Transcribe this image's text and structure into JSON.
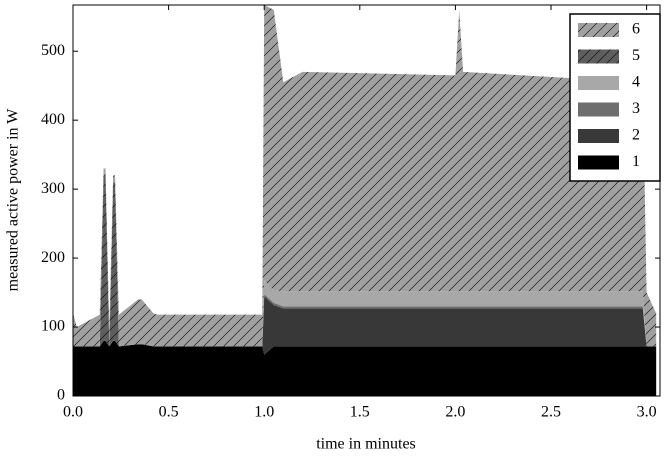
{
  "chart_data": {
    "type": "stacked-area",
    "xlabel": "time in minutes",
    "ylabel": "measured active power in W",
    "x": [
      0,
      0.02,
      0.14,
      0.16,
      0.17,
      0.19,
      0.21,
      0.22,
      0.24,
      0.34,
      0.36,
      0.42,
      0.44,
      0.99,
      1.0,
      1.05,
      1.1,
      1.2,
      2.0,
      2.02,
      2.04,
      2.98,
      3.0,
      3.05
    ],
    "series": [
      {
        "name": "1",
        "color": "#000000",
        "hatch": false,
        "values": [
          72,
          72,
          72,
          80,
          80,
          72,
          80,
          80,
          72,
          75,
          75,
          72,
          72,
          72,
          60,
          72,
          72,
          72,
          72,
          72,
          72,
          72,
          72,
          72
        ]
      },
      {
        "name": "2",
        "color": "#383838",
        "hatch": false,
        "values": [
          0,
          0,
          0,
          0,
          0,
          0,
          0,
          0,
          0,
          0,
          0,
          0,
          0,
          0,
          85,
          60,
          55,
          55,
          55,
          55,
          55,
          55,
          0,
          0
        ]
      },
      {
        "name": "3",
        "color": "#6e6e6e",
        "hatch": false,
        "values": [
          0,
          0,
          0,
          0,
          0,
          0,
          0,
          0,
          0,
          0,
          0,
          0,
          0,
          0,
          3,
          3,
          3,
          3,
          3,
          3,
          3,
          3,
          0,
          0
        ]
      },
      {
        "name": "4",
        "color": "#a8a8a8",
        "hatch": false,
        "values": [
          0,
          0,
          0,
          0,
          0,
          0,
          0,
          0,
          0,
          0,
          0,
          0,
          0,
          0,
          20,
          18,
          22,
          22,
          22,
          22,
          22,
          22,
          0,
          0
        ]
      },
      {
        "name": "5",
        "color": "#5e5e5e",
        "hatch": true,
        "values": [
          0,
          0,
          0,
          240,
          240,
          0,
          230,
          230,
          0,
          0,
          0,
          0,
          0,
          0,
          0,
          0,
          0,
          0,
          0,
          0,
          0,
          0,
          0,
          0
        ]
      },
      {
        "name": "6",
        "color": "#a0a0a0",
        "hatch": true,
        "values": [
          48,
          28,
          46,
          10,
          10,
          28,
          10,
          10,
          46,
          65,
          65,
          48,
          46,
          46,
          399,
          407,
          303,
          318,
          313,
          408,
          318,
          303,
          78,
          48
        ]
      }
    ],
    "xlim": [
      0,
      3.07
    ],
    "ylim": [
      0,
      567
    ],
    "xticks": [
      {
        "value": 0,
        "label": "0.0"
      },
      0.5,
      {
        "value": 1,
        "label": "1.0"
      },
      1.5,
      {
        "value": 2,
        "label": "2.0"
      },
      2.5,
      {
        "value": 3,
        "label": "3.0"
      }
    ],
    "yticks": [
      0,
      100,
      200,
      300,
      400,
      500
    ],
    "legend": "upper right"
  }
}
